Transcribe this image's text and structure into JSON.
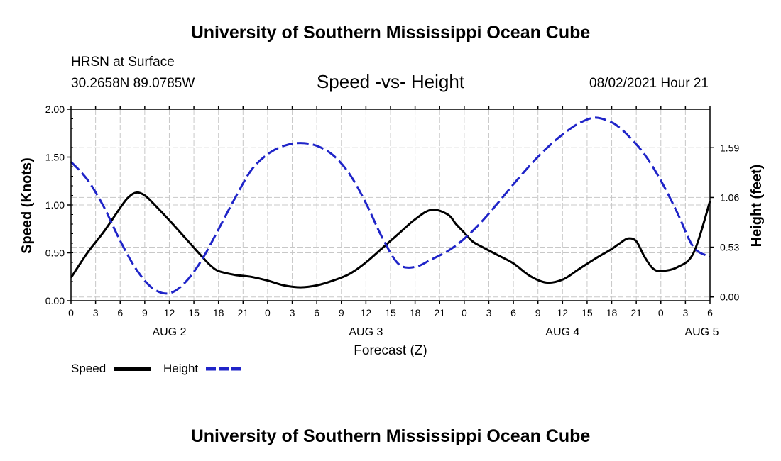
{
  "top_title": "University of Southern Mississippi Ocean Cube",
  "bottom_title": "University of Southern Mississippi Ocean Cube",
  "station": {
    "name": "HRSN at Surface",
    "coords": "30.2658N  89.0785W"
  },
  "run_time": "08/02/2021 Hour 21",
  "colors": {
    "speed": "#000000",
    "height": "#1f24c8",
    "grid": "#c8c8c8"
  },
  "chart_data": {
    "type": "line",
    "title": "Speed -vs- Height",
    "xlabel": "Forecast (Z)",
    "ylabel_left": "Speed (Knots)",
    "ylabel_right": "Height (feet)",
    "x_unit": "hours since AUG 2 00Z",
    "xlim": [
      0,
      78
    ],
    "ylim_left": [
      0,
      2
    ],
    "ylim_right": [
      -0.04,
      2.0
    ],
    "x_ticks": [
      0,
      3,
      6,
      9,
      12,
      15,
      18,
      21,
      24,
      27,
      30,
      33,
      36,
      39,
      42,
      45,
      48,
      51,
      54,
      57,
      60,
      63,
      66,
      69,
      72,
      75,
      78
    ],
    "x_tick_labels": [
      "0",
      "3",
      "6",
      "9",
      "12",
      "15",
      "18",
      "21",
      "0",
      "3",
      "6",
      "9",
      "12",
      "15",
      "18",
      "21",
      "0",
      "3",
      "6",
      "9",
      "12",
      "15",
      "18",
      "21",
      "0",
      "3",
      "6"
    ],
    "y_ticks_left": [
      0.0,
      0.5,
      1.0,
      1.5,
      2.0
    ],
    "y_tick_labels_left": [
      "0.00",
      "0.50",
      "1.00",
      "1.50",
      "2.00"
    ],
    "y_ticks_right": [
      0.0,
      0.53,
      1.06,
      1.59
    ],
    "y_tick_labels_right": [
      "0.00",
      "0.53",
      "1.06",
      "1.59"
    ],
    "date_labels": [
      {
        "x": 12,
        "label": "AUG 2"
      },
      {
        "x": 36,
        "label": "AUG 3"
      },
      {
        "x": 60,
        "label": "AUG 4"
      },
      {
        "x": 77,
        "label": "AUG 5"
      }
    ],
    "grid": true,
    "legend_position": "bottom-left",
    "series": [
      {
        "name": "Speed",
        "axis": "left",
        "style": "solid",
        "x": [
          0,
          2,
          4,
          6,
          7,
          8,
          9,
          10,
          12,
          14,
          16,
          17,
          18,
          20,
          22,
          24,
          26,
          28,
          30,
          32,
          34,
          36,
          38,
          40,
          42,
          44,
          46,
          47,
          48,
          49,
          50,
          52,
          54,
          56,
          58,
          60,
          62,
          64,
          66,
          67,
          68,
          69,
          70,
          71,
          72,
          74,
          76,
          78
        ],
        "y": [
          0.24,
          0.5,
          0.72,
          0.97,
          1.08,
          1.13,
          1.1,
          1.02,
          0.84,
          0.65,
          0.46,
          0.37,
          0.31,
          0.27,
          0.25,
          0.21,
          0.16,
          0.14,
          0.16,
          0.21,
          0.28,
          0.4,
          0.55,
          0.7,
          0.85,
          0.95,
          0.9,
          0.8,
          0.71,
          0.62,
          0.57,
          0.48,
          0.39,
          0.26,
          0.19,
          0.22,
          0.33,
          0.44,
          0.54,
          0.6,
          0.65,
          0.62,
          0.46,
          0.34,
          0.31,
          0.35,
          0.5,
          1.04
        ]
      },
      {
        "name": "Height",
        "axis": "right",
        "style": "dashed",
        "x": [
          0,
          2,
          4,
          6,
          8,
          10,
          12,
          14,
          16,
          18,
          20,
          22,
          24,
          26,
          28,
          30,
          32,
          34,
          36,
          38,
          40,
          42,
          44,
          46,
          48,
          50,
          52,
          54,
          56,
          58,
          60,
          62,
          64,
          66,
          67,
          68,
          70,
          72,
          74,
          76,
          78
        ],
        "y": [
          1.44,
          1.25,
          0.96,
          0.6,
          0.29,
          0.09,
          0.04,
          0.16,
          0.4,
          0.72,
          1.05,
          1.35,
          1.52,
          1.61,
          1.64,
          1.61,
          1.51,
          1.31,
          1.0,
          0.63,
          0.35,
          0.32,
          0.4,
          0.49,
          0.62,
          0.79,
          0.99,
          1.2,
          1.4,
          1.58,
          1.73,
          1.85,
          1.91,
          1.86,
          1.8,
          1.72,
          1.52,
          1.24,
          0.9,
          0.53,
          0.43
        ]
      }
    ]
  }
}
